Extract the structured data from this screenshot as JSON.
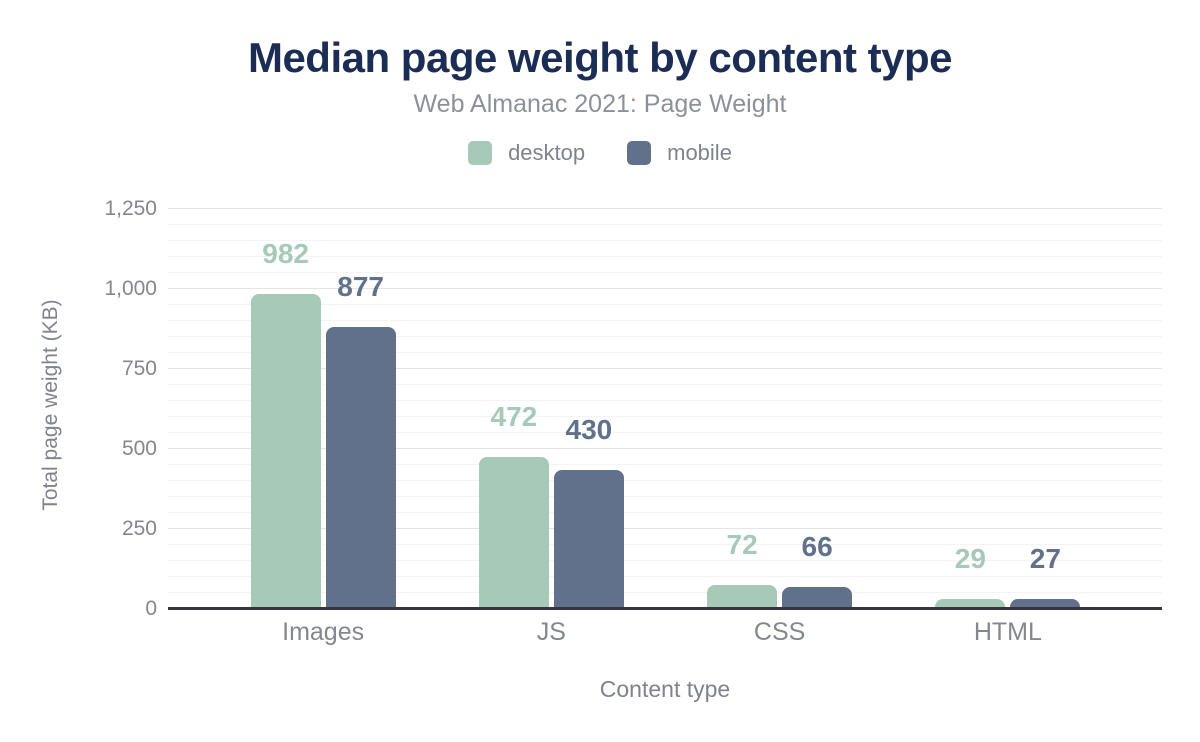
{
  "chart_data": {
    "type": "bar",
    "title": "Median page weight by content type",
    "subtitle": "Web Almanac 2021: Page Weight",
    "categories": [
      "Images",
      "JS",
      "CSS",
      "HTML"
    ],
    "series": [
      {
        "name": "desktop",
        "color": "#a7c9b8",
        "values": [
          982,
          472,
          72,
          29
        ]
      },
      {
        "name": "mobile",
        "color": "#61718c",
        "values": [
          877,
          430,
          66,
          27
        ]
      }
    ],
    "xlabel": "Content type",
    "ylabel": "Total page weight (KB)",
    "ylim": [
      0,
      1250
    ],
    "ytick_step": 250,
    "yminor_step": 50,
    "ytick_labels": [
      "0",
      "250",
      "500",
      "750",
      "1,000",
      "1,250"
    ],
    "grid": true,
    "legend_position": "top",
    "value_labels": true
  },
  "colors": {
    "title": "#1b2d54",
    "subtitle": "#8b919b",
    "axis_text": "#7e848e",
    "tick_text": "#83878f",
    "axis_line": "#35363c",
    "grid_major": "#e4e4e4",
    "grid_minor": "#f4f4f4",
    "desktop": "#a7c9b8",
    "mobile": "#61718c"
  }
}
